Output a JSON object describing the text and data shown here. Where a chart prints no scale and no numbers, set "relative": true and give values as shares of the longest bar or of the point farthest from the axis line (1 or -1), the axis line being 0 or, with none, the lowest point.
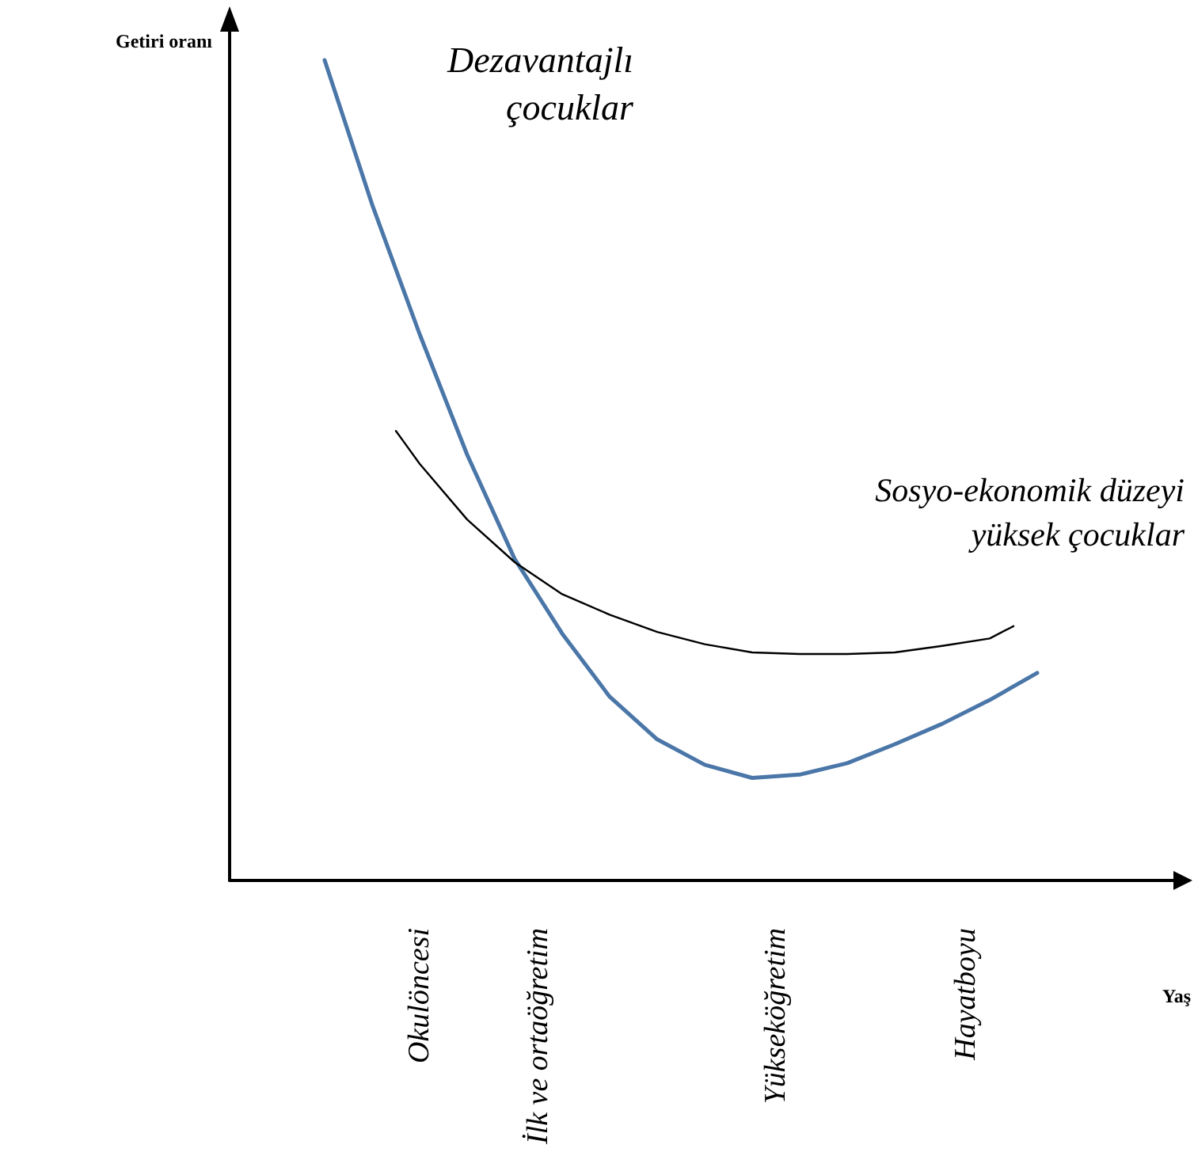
{
  "chart_data": {
    "type": "line",
    "relative": true,
    "marker": "none",
    "xlabel": "Yaş",
    "ylabel": "Getiri oranı",
    "categories": [
      null,
      null,
      null,
      null,
      null,
      null,
      null,
      null,
      "Okulöncesi",
      null,
      null,
      null,
      null,
      "İlk ve ortaöğretim",
      null,
      null,
      null,
      null,
      null,
      null,
      null,
      null,
      null,
      "Yükseköğretim",
      null,
      null,
      null,
      null,
      null,
      null,
      null,
      "Hayatboyu",
      null,
      null,
      null,
      null,
      null,
      null,
      null,
      null,
      null
    ],
    "series": [
      {
        "name": "Dezavantajlı çocuklar",
        "color": "#4a76a8",
        "values": [
          null,
          null,
          null,
          null,
          1,
          null,
          0.824,
          null,
          0.666,
          null,
          0.519,
          null,
          0.392,
          null,
          0.301,
          null,
          0.224,
          null,
          0.172,
          null,
          0.141,
          null,
          0.125,
          null,
          0.129,
          null,
          0.143,
          null,
          0.166,
          null,
          0.191,
          null,
          0.22,
          null,
          0.253,
          null,
          null,
          null,
          null,
          null,
          null
        ]
      },
      {
        "name": "Sosyo-ekonomik düzeyi yüksek çocuklar",
        "color": "#000000",
        "values": [
          null,
          null,
          null,
          null,
          null,
          null,
          null,
          0.548,
          0.508,
          null,
          0.44,
          null,
          0.388,
          null,
          0.349,
          null,
          0.324,
          null,
          0.303,
          null,
          0.288,
          null,
          0.278,
          null,
          0.276,
          null,
          0.276,
          null,
          0.278,
          null,
          0.286,
          null,
          0.295,
          0.31,
          null,
          null,
          null,
          null,
          null,
          null,
          null
        ]
      }
    ]
  }
}
